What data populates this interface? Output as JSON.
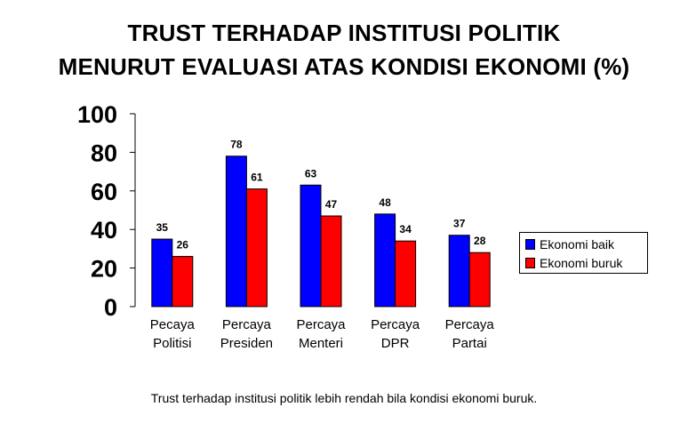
{
  "title": {
    "line1": "TRUST TERHADAP INSTITUSI POLITIK",
    "line2": "MENURUT EVALUASI ATAS KONDISI EKONOMI (%)"
  },
  "caption": "Trust terhadap institusi politik lebih rendah bila kondisi ekonomi buruk.",
  "chart_data": {
    "type": "bar",
    "title": "TRUST TERHADAP INSTITUSI POLITIK MENURUT EVALUASI ATAS KONDISI EKONOMI (%)",
    "categories": [
      [
        "Pecaya",
        "Politisi"
      ],
      [
        "Percaya",
        "Presiden"
      ],
      [
        "Percaya",
        "Menteri"
      ],
      [
        "Percaya",
        "DPR"
      ],
      [
        "Percaya",
        "Partai"
      ]
    ],
    "series": [
      {
        "name": "Ekonomi baik",
        "color": "#0000ff",
        "values": [
          35,
          78,
          63,
          48,
          37
        ]
      },
      {
        "name": "Ekonomi buruk",
        "color": "#ff0000",
        "values": [
          26,
          61,
          47,
          34,
          28
        ]
      }
    ],
    "ylim": [
      0,
      100
    ],
    "yticks": [
      0,
      20,
      40,
      60,
      80,
      100
    ],
    "grid": false,
    "legend_position": "right"
  }
}
